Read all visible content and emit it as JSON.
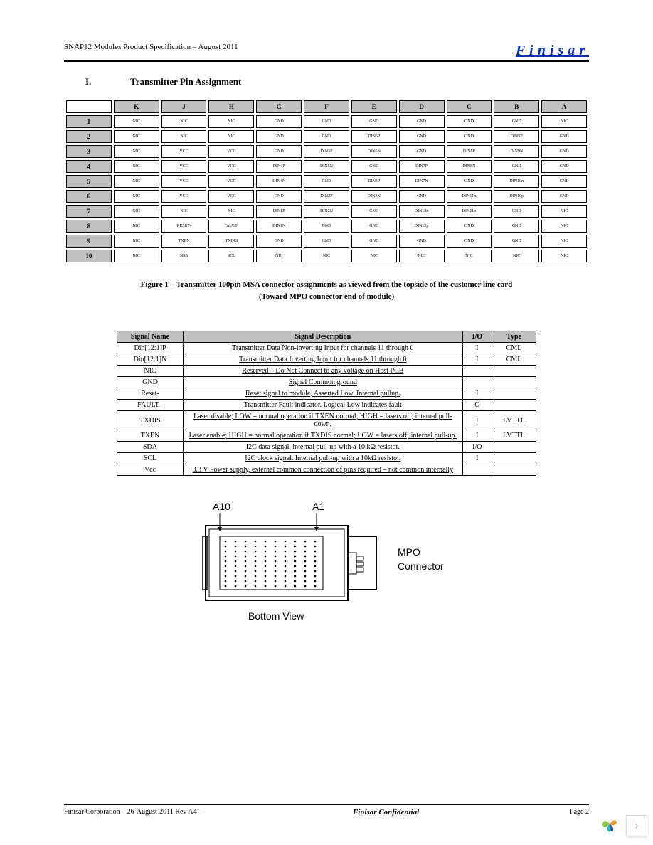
{
  "header": {
    "left": "SNAP12 Modules Product Specification – August 2011",
    "right": "Finisar"
  },
  "section": {
    "roman": "I.",
    "title": "Transmitter Pin Assignment"
  },
  "pin_table": {
    "columns": [
      "K",
      "J",
      "H",
      "G",
      "F",
      "E",
      "D",
      "C",
      "B",
      "A"
    ],
    "rows": [
      "1",
      "2",
      "3",
      "4",
      "5",
      "6",
      "7",
      "8",
      "9",
      "10"
    ],
    "cells": [
      [
        "NIC",
        "NIC",
        "NIC",
        "GND",
        "GND",
        "GND",
        "GND",
        "GND",
        "GND",
        "NIC"
      ],
      [
        "NIC",
        "NIC",
        "NIC",
        "GND",
        "GND",
        "DIN6P",
        "GND",
        "GND",
        "DIN9P",
        "GND"
      ],
      [
        "NIC",
        "VCC",
        "VCC",
        "GND",
        "DIN5P",
        "DIN6N",
        "GND",
        "DIN8P",
        "DIN9N",
        "GND"
      ],
      [
        "NIC",
        "VCC",
        "VCC",
        "DIN4P",
        "DIN5N",
        "GND",
        "DIN7P",
        "DIN8N",
        "GND",
        "GND"
      ],
      [
        "NIC",
        "VCC",
        "VCC",
        "DIN4N",
        "GND",
        "DIN3P",
        "DIN7N",
        "GND",
        "DIN10n",
        "GND"
      ],
      [
        "NIC",
        "VCC",
        "VCC",
        "GND",
        "DIN2P",
        "DIN3N",
        "GND",
        "DIN11n",
        "DIN10p",
        "GND"
      ],
      [
        "NIC",
        "NIC",
        "NIC",
        "DIN1P",
        "DIN2N",
        "GND",
        "DIN12n",
        "DIN11p",
        "GND",
        "NIC"
      ],
      [
        "NIC",
        "RESET-",
        "FAULT-",
        "DIN1N",
        "GND",
        "GND",
        "DIN12p",
        "GND",
        "GND",
        "NIC"
      ],
      [
        "NIC",
        "TXEN",
        "TXDIS",
        "GND",
        "GND",
        "GND",
        "GND",
        "GND",
        "GND",
        "NIC"
      ],
      [
        "NIC",
        "SDA",
        "SCL",
        "NIC",
        "NIC",
        "NIC",
        "NIC",
        "NIC",
        "NIC",
        "NIC"
      ]
    ]
  },
  "figure_caption": {
    "line1": "Figure 1 – Transmitter 100pin MSA connector assignments as viewed from the topside of the customer line card",
    "line2": "(Toward MPO connector end of module)"
  },
  "signal_table": {
    "headers": [
      "Signal Name",
      "Signal Description",
      "I/O",
      "Type"
    ],
    "rows": [
      {
        "name": "Din[12:1]P",
        "desc": "Transmitter Data Non-inverting Input for channels 11 through 0",
        "io": "I",
        "type": "CML"
      },
      {
        "name": "Din[12:1]N",
        "desc": "Transmitter Data Inverting Input for channels 11 through 0",
        "io": "I",
        "type": "CML"
      },
      {
        "name": "NIC",
        "desc": "Reserved – Do Not Connect to any voltage on Host PCB",
        "io": "",
        "type": ""
      },
      {
        "name": "GND",
        "desc": "Signal Common ground",
        "io": "",
        "type": ""
      },
      {
        "name": "Reset-",
        "desc": "Reset signal to module, Asserted Low. Internal pullup.",
        "io": "I",
        "type": ""
      },
      {
        "name": "FAULT–",
        "desc": "Transmitter Fault indicator. Logical Low indicates fault",
        "io": "O",
        "type": ""
      },
      {
        "name": "TXDIS",
        "desc": "Laser disable; LOW = normal operation if TXEN normal; HIGH = lasers off; internal pull-down,",
        "io": "I",
        "type": "LVTTL"
      },
      {
        "name": "TXEN",
        "desc": "Laser enable; HIGH = normal operation if TXDIS normal; LOW = lasers off; internal pull-up.",
        "io": "I",
        "type": "LVTTL"
      },
      {
        "name": "SDA",
        "desc": "I2C data signal, internal pull-up with a 10 kΩ resistor.",
        "io": "I/O",
        "type": ""
      },
      {
        "name": "SCL",
        "desc": "I2C clock signal. Internal pull-up with a 10kΩ resistor.",
        "io": "I",
        "type": ""
      },
      {
        "name": "Vcc",
        "desc": "3.3 V Power supply, external common connection of pins required – not common internally",
        "io": "",
        "type": ""
      }
    ]
  },
  "connector": {
    "a10": "A10",
    "a1": "A1",
    "mpo1": "MPO",
    "mpo2": "Connector",
    "bottom": "Bottom View"
  },
  "footer": {
    "left": " Finisar Corporation – 26-August-2011 Rev A4 –",
    "mid": "Finisar Confidential",
    "right": "Page 2"
  },
  "colors": {
    "header_blue": "#0033cc",
    "grey_header": "#c0c0c0",
    "logo_green": "#8cc63f",
    "logo_orange": "#f7941e",
    "logo_teal": "#1cbbb4",
    "logo_blue": "#3b5998"
  }
}
